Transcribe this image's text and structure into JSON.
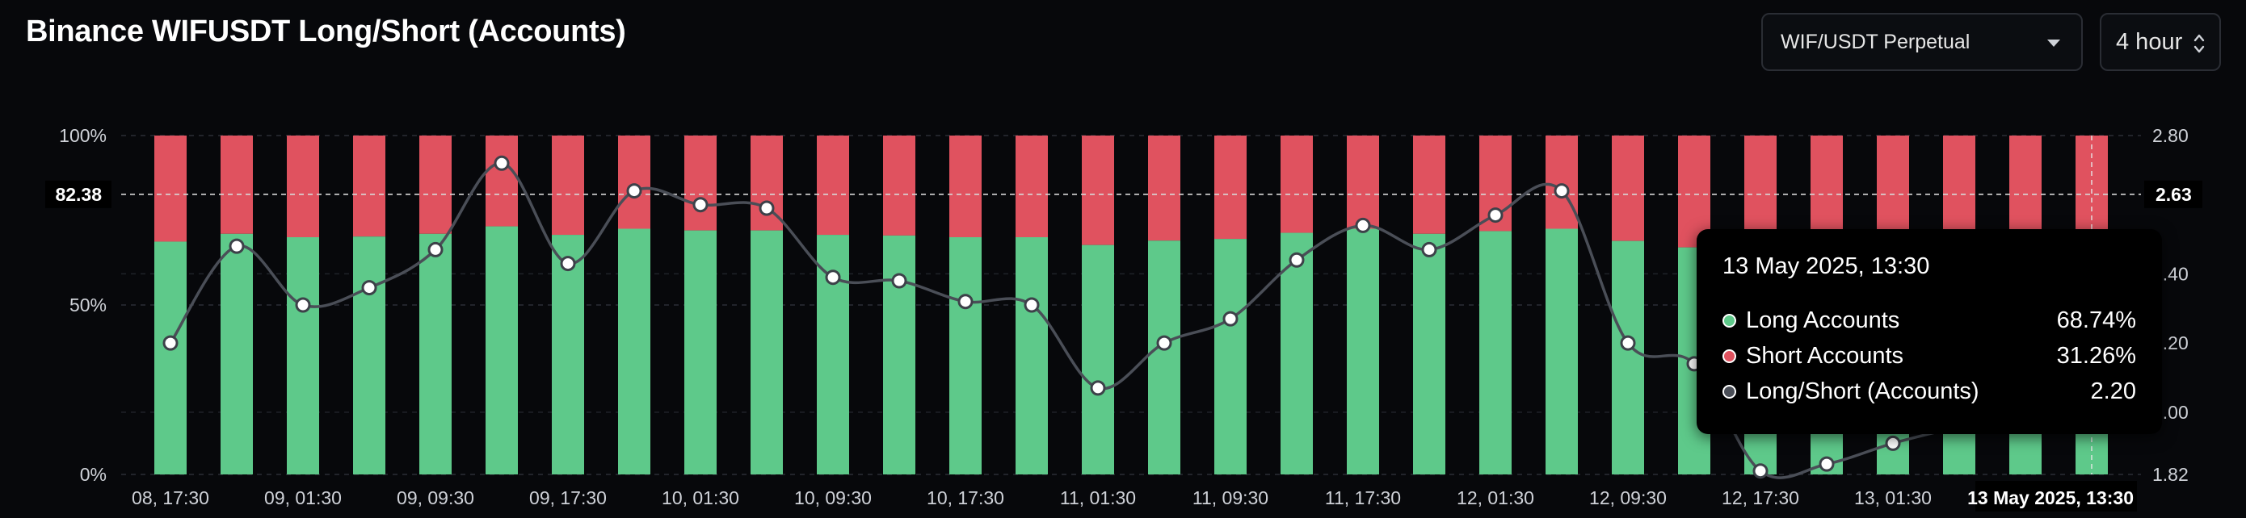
{
  "header": {
    "title": "Binance WIFUSDT Long/Short (Accounts)",
    "pair_select": "WIF/USDT Perpetual",
    "interval_select": "4 hour"
  },
  "colors": {
    "long": "#5ec98a",
    "short": "#e0525f",
    "ratio_line": "#4a4e57",
    "background": "#07080b"
  },
  "chart_data": {
    "type": "bar",
    "stacked": true,
    "title": "Binance WIFUSDT Long/Short (Accounts)",
    "x_tick_labels": [
      "08, 17:30",
      "09, 01:30",
      "09, 09:30",
      "09, 17:30",
      "10, 01:30",
      "10, 09:30",
      "10, 17:30",
      "11, 01:30",
      "11, 09:30",
      "11, 17:30",
      "12, 01:30",
      "12, 09:30",
      "12, 17:30",
      "13, 01:30",
      "13 May 2025, 13:30"
    ],
    "y_left_ticks": [
      "100%",
      "50%",
      "0%"
    ],
    "y_left_lim": [
      0,
      100
    ],
    "y_right_ticks": [
      "2.80",
      "2.40",
      "2.20",
      "2.00",
      "1.82"
    ],
    "y_right_lim": [
      1.82,
      2.8
    ],
    "crosshair": {
      "left_label": "82.38",
      "right_label": "2.63"
    },
    "grid": true,
    "series": [
      {
        "name": "Long Accounts",
        "unit": "%",
        "values": [
          68.7,
          71.0,
          70.0,
          70.2,
          71.0,
          73.2,
          70.7,
          72.5,
          72.0,
          72.0,
          70.7,
          70.5,
          70.0,
          70.0,
          67.7,
          69.0,
          69.5,
          71.3,
          72.5,
          71.0,
          71.8,
          72.5,
          68.9,
          67.0,
          66.0,
          66.0,
          66.5,
          67.0,
          67.5,
          68.74
        ]
      },
      {
        "name": "Short Accounts",
        "unit": "%",
        "values": [
          31.3,
          29.0,
          30.0,
          29.8,
          29.0,
          26.8,
          29.3,
          27.5,
          28.0,
          28.0,
          29.3,
          29.5,
          30.0,
          30.0,
          32.3,
          31.0,
          30.5,
          28.7,
          27.5,
          29.0,
          28.2,
          27.5,
          31.1,
          33.0,
          34.0,
          34.0,
          33.5,
          33.0,
          32.5,
          31.26
        ]
      },
      {
        "name": "Long/Short (Accounts)",
        "axis": "right",
        "values": [
          2.2,
          2.48,
          2.31,
          2.36,
          2.47,
          2.72,
          2.43,
          2.64,
          2.6,
          2.59,
          2.39,
          2.38,
          2.32,
          2.31,
          2.07,
          2.2,
          2.27,
          2.44,
          2.54,
          2.47,
          2.57,
          2.64,
          2.2,
          2.14,
          1.83,
          1.85,
          1.91,
          1.96,
          2.02,
          2.2
        ]
      }
    ]
  },
  "tooltip": {
    "time": "13 May 2025, 13:30",
    "rows": [
      {
        "label": "Long Accounts",
        "value": "68.74%",
        "color": "#5ec98a"
      },
      {
        "label": "Short Accounts",
        "value": "31.26%",
        "color": "#e0525f"
      },
      {
        "label": "Long/Short (Accounts)",
        "value": "2.20",
        "color": "#4a4e57"
      }
    ]
  }
}
